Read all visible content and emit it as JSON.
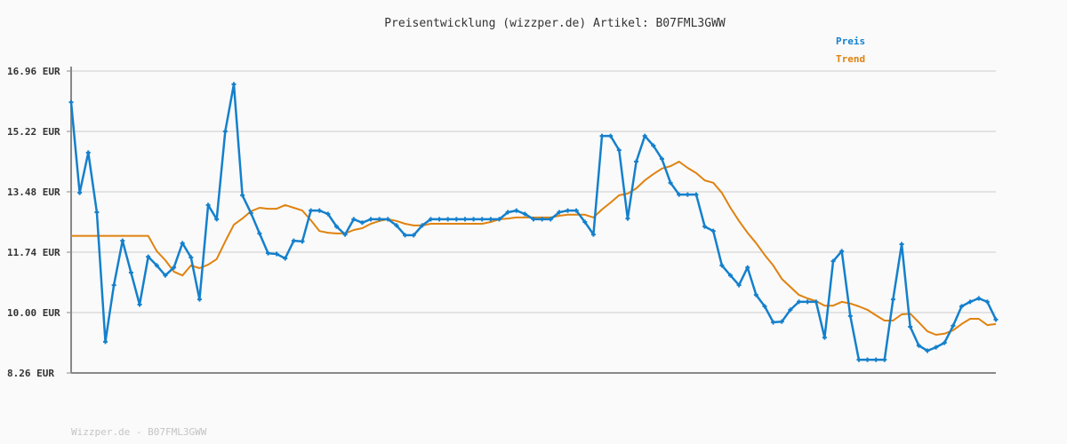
{
  "chart_data": {
    "type": "line",
    "title": "Preisentwicklung (wizzper.de) Artikel: B07FML3GWW",
    "xlabel": "",
    "ylabel": "",
    "ylim": [
      8.26,
      16.96
    ],
    "yticks": [
      "8.26 EUR",
      "10.00 EUR",
      "11.74 EUR",
      "13.48 EUR",
      "15.22 EUR",
      "16.96 EUR"
    ],
    "ytick_values": [
      8.26,
      10.0,
      11.74,
      13.48,
      15.22,
      16.96
    ],
    "grid": true,
    "legend_placement": "top-right",
    "series": [
      {
        "name": "Preis",
        "color": "#1480cc",
        "markers": true,
        "values": [
          16.06,
          13.45,
          14.61,
          12.89,
          9.16,
          10.79,
          12.07,
          11.15,
          10.23,
          11.61,
          11.36,
          11.07,
          11.3,
          12.0,
          11.59,
          10.38,
          13.1,
          12.69,
          15.22,
          16.58,
          13.38,
          12.87,
          12.28,
          11.71,
          11.69,
          11.56,
          12.07,
          12.05,
          12.94,
          12.94,
          12.84,
          12.48,
          12.25,
          12.69,
          12.59,
          12.69,
          12.69,
          12.69,
          12.51,
          12.23,
          12.23,
          12.51,
          12.69,
          12.69,
          12.69,
          12.69,
          12.69,
          12.69,
          12.69,
          12.69,
          12.69,
          12.89,
          12.94,
          12.84,
          12.69,
          12.69,
          12.69,
          12.89,
          12.94,
          12.94,
          12.61,
          12.25,
          15.09,
          15.09,
          14.68,
          12.71,
          14.35,
          15.09,
          14.81,
          14.43,
          13.74,
          13.4,
          13.4,
          13.4,
          12.48,
          12.35,
          11.36,
          11.07,
          10.79,
          11.3,
          10.51,
          10.18,
          9.72,
          9.74,
          10.08,
          10.31,
          10.31,
          10.31,
          9.28,
          11.48,
          11.77,
          9.9,
          8.64,
          8.64,
          8.64,
          8.64,
          10.38,
          11.97,
          9.59,
          9.05,
          8.9,
          9.0,
          9.13,
          9.62,
          10.18,
          10.31,
          10.41,
          10.31,
          9.8
        ]
      },
      {
        "name": "Trend",
        "color": "#e0820f",
        "markers": false,
        "values": [
          12.21,
          12.21,
          12.21,
          12.21,
          12.21,
          12.21,
          12.21,
          12.21,
          12.21,
          12.21,
          11.77,
          11.51,
          11.18,
          11.07,
          11.36,
          11.28,
          11.38,
          11.54,
          12.05,
          12.53,
          12.71,
          12.92,
          13.02,
          12.99,
          12.99,
          13.1,
          13.02,
          12.94,
          12.66,
          12.35,
          12.3,
          12.28,
          12.28,
          12.38,
          12.43,
          12.56,
          12.64,
          12.69,
          12.64,
          12.56,
          12.51,
          12.51,
          12.56,
          12.56,
          12.56,
          12.56,
          12.56,
          12.56,
          12.56,
          12.61,
          12.69,
          12.71,
          12.74,
          12.74,
          12.74,
          12.74,
          12.74,
          12.79,
          12.82,
          12.82,
          12.82,
          12.74,
          12.97,
          13.17,
          13.38,
          13.43,
          13.58,
          13.81,
          13.99,
          14.15,
          14.22,
          14.35,
          14.17,
          14.02,
          13.81,
          13.74,
          13.45,
          13.02,
          12.64,
          12.3,
          12.0,
          11.66,
          11.36,
          10.97,
          10.74,
          10.51,
          10.41,
          10.33,
          10.2,
          10.2,
          10.31,
          10.26,
          10.18,
          10.08,
          9.92,
          9.77,
          9.77,
          9.95,
          9.97,
          9.72,
          9.46,
          9.36,
          9.39,
          9.49,
          9.67,
          9.82,
          9.82,
          9.64,
          9.67
        ]
      }
    ]
  },
  "footer": "Wizzper.de - B07FML3GWW"
}
